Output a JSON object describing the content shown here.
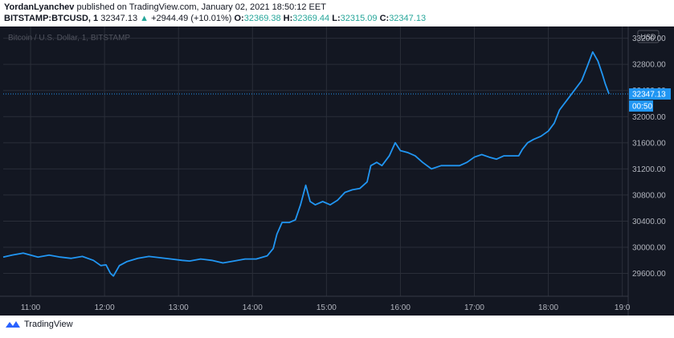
{
  "header": {
    "author": "YordanLyanchev",
    "published_text": "published on TradingView.com, January 02, 2021 18:50:12 EET",
    "symbol": "BITSTAMP:BTCUSD, 1",
    "last": "32347.13",
    "change_arrow": "▲",
    "change": "+2944.49 (+10.01%)",
    "o_label": "O:",
    "o_value": "32369.38",
    "h_label": "H:",
    "h_value": "32369.44",
    "l_label": "L:",
    "l_value": "32315.09",
    "c_label": "C:",
    "c_value": "32347.13"
  },
  "colors": {
    "background": "#131722",
    "grid": "#2a2e39",
    "line": "#2196f3",
    "axis_text": "#b2b5be",
    "price_tag": "#2196f3",
    "up": "#26a69a"
  },
  "footer": {
    "brand": "TradingView",
    "logo_icon": "tradingview-logo-icon"
  },
  "chart_data": {
    "type": "line",
    "title": "Bitcoin / U.S. Dollar, 1, BITSTAMP",
    "currency_label": "USD",
    "x_ticks": [
      "11:00",
      "12:00",
      "13:00",
      "14:00",
      "15:00",
      "16:00",
      "17:00",
      "18:00",
      "19:0"
    ],
    "y_ticks": [
      "29600.00",
      "30000.00",
      "30400.00",
      "30800.00",
      "31200.00",
      "31600.00",
      "32000.00",
      "32400.00",
      "32800.00",
      "33200.00"
    ],
    "ylim": [
      29250,
      33380
    ],
    "xlim_hours": [
      10.63,
      19.08
    ],
    "last_price_label": "32347.13",
    "last_price": 32347.13,
    "countdown_label": "00:50",
    "grid": true,
    "series": [
      {
        "points": [
          [
            10.63,
            29850
          ],
          [
            10.75,
            29880
          ],
          [
            10.9,
            29910
          ],
          [
            11.0,
            29880
          ],
          [
            11.1,
            29850
          ],
          [
            11.25,
            29880
          ],
          [
            11.4,
            29850
          ],
          [
            11.55,
            29830
          ],
          [
            11.7,
            29860
          ],
          [
            11.85,
            29800
          ],
          [
            11.95,
            29720
          ],
          [
            12.02,
            29730
          ],
          [
            12.08,
            29600
          ],
          [
            12.12,
            29560
          ],
          [
            12.2,
            29720
          ],
          [
            12.3,
            29780
          ],
          [
            12.45,
            29830
          ],
          [
            12.6,
            29860
          ],
          [
            12.75,
            29840
          ],
          [
            12.9,
            29820
          ],
          [
            13.05,
            29800
          ],
          [
            13.15,
            29790
          ],
          [
            13.3,
            29820
          ],
          [
            13.45,
            29800
          ],
          [
            13.6,
            29760
          ],
          [
            13.75,
            29790
          ],
          [
            13.9,
            29820
          ],
          [
            14.05,
            29820
          ],
          [
            14.2,
            29870
          ],
          [
            14.28,
            29980
          ],
          [
            14.33,
            30200
          ],
          [
            14.4,
            30380
          ],
          [
            14.5,
            30380
          ],
          [
            14.58,
            30420
          ],
          [
            14.65,
            30650
          ],
          [
            14.72,
            30950
          ],
          [
            14.78,
            30700
          ],
          [
            14.85,
            30650
          ],
          [
            14.95,
            30700
          ],
          [
            15.05,
            30650
          ],
          [
            15.15,
            30720
          ],
          [
            15.25,
            30840
          ],
          [
            15.35,
            30880
          ],
          [
            15.45,
            30900
          ],
          [
            15.55,
            31000
          ],
          [
            15.6,
            31250
          ],
          [
            15.68,
            31300
          ],
          [
            15.75,
            31250
          ],
          [
            15.85,
            31400
          ],
          [
            15.93,
            31600
          ],
          [
            16.0,
            31480
          ],
          [
            16.1,
            31450
          ],
          [
            16.2,
            31400
          ],
          [
            16.3,
            31300
          ],
          [
            16.42,
            31200
          ],
          [
            16.55,
            31250
          ],
          [
            16.7,
            31250
          ],
          [
            16.8,
            31250
          ],
          [
            16.9,
            31300
          ],
          [
            17.0,
            31380
          ],
          [
            17.1,
            31420
          ],
          [
            17.2,
            31380
          ],
          [
            17.3,
            31350
          ],
          [
            17.4,
            31400
          ],
          [
            17.5,
            31400
          ],
          [
            17.6,
            31400
          ],
          [
            17.65,
            31500
          ],
          [
            17.72,
            31600
          ],
          [
            17.8,
            31650
          ],
          [
            17.9,
            31700
          ],
          [
            18.0,
            31780
          ],
          [
            18.08,
            31900
          ],
          [
            18.15,
            32100
          ],
          [
            18.25,
            32250
          ],
          [
            18.35,
            32400
          ],
          [
            18.45,
            32550
          ],
          [
            18.52,
            32750
          ],
          [
            18.6,
            32990
          ],
          [
            18.67,
            32850
          ],
          [
            18.73,
            32650
          ],
          [
            18.77,
            32500
          ],
          [
            18.82,
            32347.13
          ]
        ]
      }
    ]
  }
}
